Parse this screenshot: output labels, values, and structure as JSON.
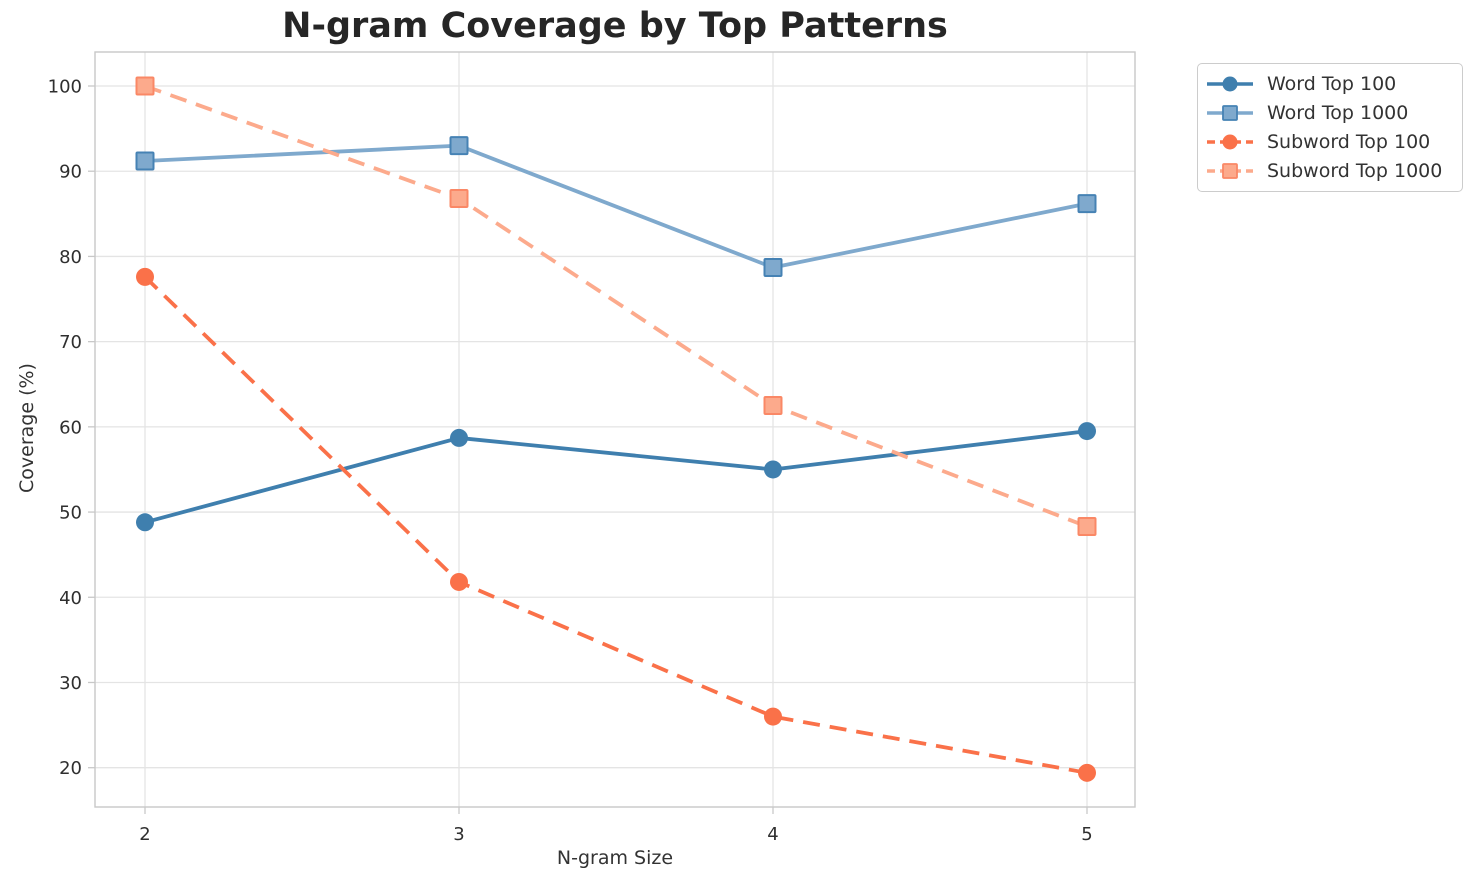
{
  "title": "N-gram Coverage by Top Patterns",
  "chart_data": {
    "type": "line",
    "title": "N-gram Coverage by Top Patterns",
    "xlabel": "N-gram Size",
    "ylabel": "Coverage (%)",
    "x": [
      2,
      3,
      4,
      5
    ],
    "xticks": [
      "2",
      "3",
      "4",
      "5"
    ],
    "yticks": [
      "20",
      "30",
      "40",
      "50",
      "60",
      "70",
      "80",
      "90",
      "100"
    ],
    "ytick_values": [
      20,
      30,
      40,
      50,
      60,
      70,
      80,
      90,
      100
    ],
    "xlim": [
      1.84,
      5.15
    ],
    "ylim": [
      15.4,
      104
    ],
    "grid": true,
    "legend_position": "outside-top-right",
    "colors": {
      "word_top_100": "#3f7fae",
      "word_top_1000": "#7fa9cd",
      "word_top_1000_edge": "#4682b4",
      "subword_top_100": "#fa7149",
      "subword_top_1000": "#fcaa8c",
      "subword_top_1000_edge": "#fa8866",
      "grid_line": "#e4e4e4",
      "spine": "#c8c8c8"
    },
    "series": [
      {
        "name": "Word Top 100",
        "values": [
          48.8,
          58.7,
          55.0,
          59.5
        ],
        "color": "#3f7fae",
        "marker_edge": "#3f7fae",
        "dash": "solid",
        "marker": "circle"
      },
      {
        "name": "Word Top 1000",
        "values": [
          91.2,
          93.0,
          78.7,
          86.2
        ],
        "color": "#7fa9cd",
        "marker_edge": "#4682b4",
        "dash": "solid",
        "marker": "square"
      },
      {
        "name": "Subword Top 100",
        "values": [
          77.6,
          41.8,
          26.0,
          19.4
        ],
        "color": "#fa7149",
        "marker_edge": "#fa7149",
        "dash": "dashed",
        "marker": "circle"
      },
      {
        "name": "Subword Top 1000",
        "values": [
          100.0,
          86.8,
          62.5,
          48.3
        ],
        "color": "#fcaa8c",
        "marker_edge": "#fa8866",
        "dash": "dashed",
        "marker": "square"
      }
    ]
  }
}
